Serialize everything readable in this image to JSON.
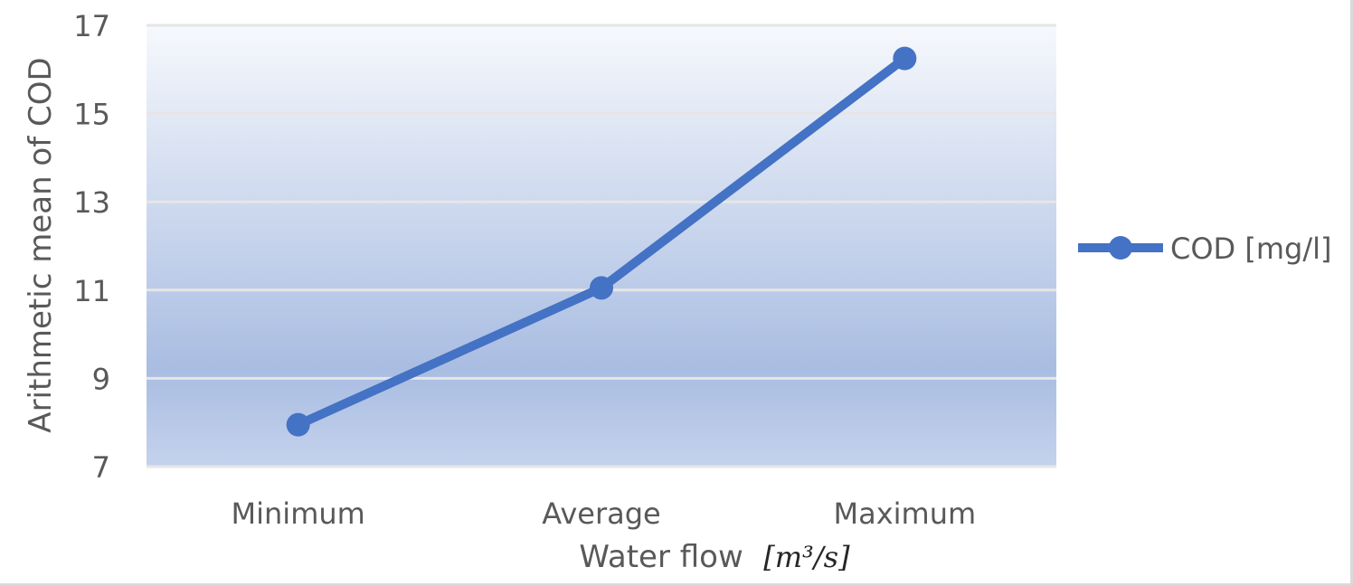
{
  "chart_data": {
    "type": "line",
    "categories": [
      "Minimum",
      "Average",
      "Maximum"
    ],
    "series": [
      {
        "name": "COD [mg/l]",
        "values": [
          7.95,
          11.05,
          16.25
        ],
        "color": "#4472c4"
      }
    ],
    "xlabel": "Water flow",
    "xlabel_unit": "[m³/s]",
    "ylabel": "Arithmetic mean of COD",
    "ylim": [
      7,
      17
    ],
    "yticks": [
      7,
      9,
      11,
      13,
      15,
      17
    ],
    "grid": true,
    "legend_position": "right"
  }
}
